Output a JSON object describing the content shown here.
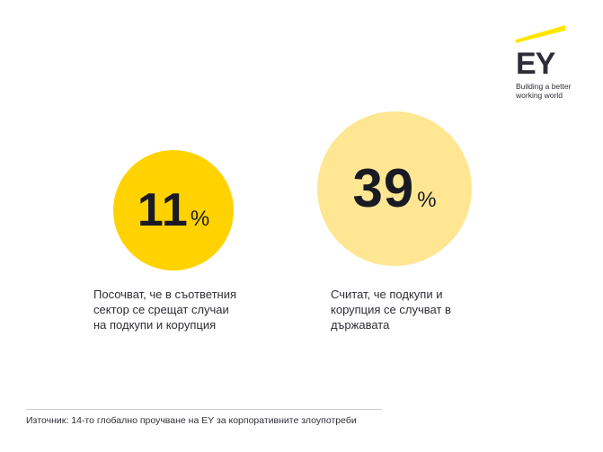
{
  "logo": {
    "mark": "EY",
    "tagline_line1": "Building a better",
    "tagline_line2": "working world",
    "accent_color": "#ffe600",
    "text_color": "#2e2e38"
  },
  "stats": [
    {
      "value": "11",
      "unit": "%",
      "circle_color": "#ffd200",
      "caption": "Посочват, че в съответния\nсектор се срещат случаи\nна подкупи и корупция"
    },
    {
      "value": "39",
      "unit": "%",
      "circle_color": "#ffe693",
      "caption": "Считат, че подкупи и\nкорупция се случват в\nдържавата"
    }
  ],
  "footer": {
    "source": "Източник: 14-то глобално проучване на EY за корпоративните злоупотреби"
  }
}
